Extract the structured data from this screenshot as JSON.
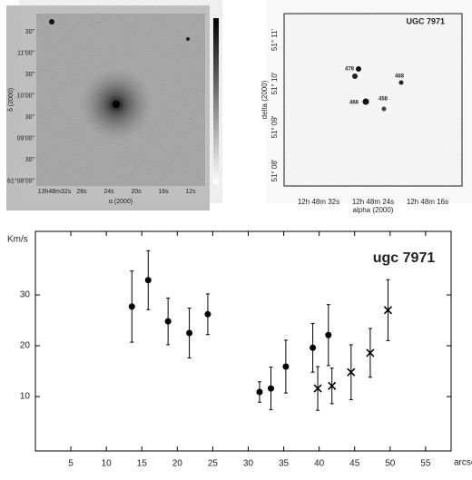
{
  "images": [
    {
      "xlabel": "α (2000)",
      "ylabel": "δ (2000)",
      "xticks": [
        "13h48m32s",
        "28s",
        "24s",
        "20s",
        "16s",
        "12s"
      ],
      "yticks": [
        "30\"",
        "11'00\"",
        "30\"",
        "10'00\"",
        "30\"",
        "09'00\"",
        "30\"",
        "61°08'00\""
      ]
    },
    {
      "title": "UGC 7971",
      "xlabel": "alpha (2000)",
      "ylabel": "delta (2000)",
      "xticks": [
        "12h 48m 32s",
        "12h 48m 24s",
        "12h 48m 16s"
      ],
      "yticks": [
        "51° 11'",
        "51° 10'",
        "51° 09'",
        "51° 08'"
      ],
      "annotations": [
        "478",
        "468",
        "466",
        "458"
      ]
    }
  ],
  "chart_data": {
    "type": "scatter",
    "title": "ugc 7971",
    "ylabel": "Km/s",
    "xlabel": "arcsec",
    "xlim": [
      0,
      58.6
    ],
    "ylim": [
      -0.7,
      42.5
    ],
    "xticks": [
      5,
      10,
      15,
      20,
      25,
      30,
      35,
      40,
      45,
      50,
      55
    ],
    "yticks": [
      10,
      20,
      30
    ],
    "color": "#000000",
    "series": [
      {
        "marker": "circle",
        "x": [
          13.6,
          15.9,
          18.7,
          21.7,
          24.3,
          31.6,
          33.2,
          35.3,
          39.1,
          41.3
        ],
        "values": [
          27.7,
          32.9,
          24.8,
          22.5,
          26.2,
          10.9,
          11.6,
          15.9,
          19.6,
          22.1
        ],
        "errors": [
          7,
          5.8,
          4.6,
          4.9,
          4,
          2,
          4.2,
          5.2,
          4.8,
          6
        ]
      },
      {
        "marker": "cross",
        "x": [
          39.8,
          41.8,
          44.5,
          47.2,
          49.7
        ],
        "values": [
          11.6,
          12.1,
          14.8,
          18.6,
          27.0
        ],
        "errors": [
          4.3,
          3.5,
          5.4,
          4.8,
          6
        ]
      }
    ]
  }
}
